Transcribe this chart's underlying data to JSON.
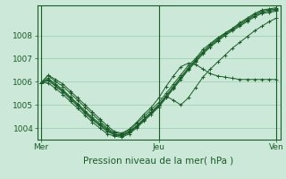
{
  "xlabel": "Pression niveau de la mer( hPa )",
  "background_color": "#cce8d8",
  "plot_bg_color": "#cce8d8",
  "line_color": "#1a5c28",
  "grid_color": "#99ccaa",
  "tick_color": "#1a5c28",
  "ylim": [
    1003.5,
    1009.3
  ],
  "yticks": [
    1004,
    1005,
    1006,
    1007,
    1008
  ],
  "xtick_positions": [
    0,
    16,
    32
  ],
  "xtick_labels": [
    "Mer",
    "Jeu",
    "Ven"
  ],
  "series": [
    [
      1005.95,
      1006.28,
      1006.0,
      1005.8,
      1005.5,
      1005.2,
      1004.9,
      1004.6,
      1004.3,
      1004.0,
      1003.8,
      1003.75,
      1003.9,
      1004.2,
      1004.5,
      1004.8,
      1005.1,
      1005.5,
      1005.9,
      1006.3,
      1006.7,
      1007.0,
      1007.4,
      1007.65,
      1007.9,
      1008.1,
      1008.3,
      1008.55,
      1008.75,
      1008.95,
      1009.1,
      1009.15,
      1009.2
    ],
    [
      1005.95,
      1006.15,
      1005.9,
      1005.65,
      1005.35,
      1005.05,
      1004.75,
      1004.45,
      1004.2,
      1003.95,
      1003.75,
      1003.7,
      1003.85,
      1004.1,
      1004.4,
      1004.7,
      1005.0,
      1005.4,
      1005.8,
      1006.2,
      1006.6,
      1006.95,
      1007.3,
      1007.6,
      1007.85,
      1008.1,
      1008.3,
      1008.5,
      1008.7,
      1008.9,
      1009.05,
      1009.1,
      1009.15
    ],
    [
      1005.95,
      1006.05,
      1005.8,
      1005.55,
      1005.25,
      1004.95,
      1004.65,
      1004.35,
      1004.1,
      1003.85,
      1003.7,
      1003.65,
      1003.8,
      1004.05,
      1004.35,
      1004.65,
      1004.95,
      1005.35,
      1005.75,
      1006.15,
      1006.55,
      1006.9,
      1007.25,
      1007.55,
      1007.8,
      1008.05,
      1008.25,
      1008.45,
      1008.65,
      1008.85,
      1009.0,
      1009.05,
      1009.1
    ],
    [
      1005.95,
      1005.95,
      1005.7,
      1005.45,
      1005.15,
      1004.85,
      1004.55,
      1004.25,
      1004.0,
      1003.75,
      1003.65,
      1003.6,
      1003.75,
      1004.0,
      1004.3,
      1004.6,
      1004.9,
      1005.3,
      1005.7,
      1006.1,
      1006.5,
      1006.85,
      1007.2,
      1007.5,
      1007.75,
      1008.0,
      1008.2,
      1008.4,
      1008.6,
      1008.8,
      1008.95,
      1009.0,
      1009.05
    ],
    [
      1005.95,
      1006.28,
      1006.1,
      1005.9,
      1005.6,
      1005.3,
      1005.0,
      1004.7,
      1004.4,
      1004.1,
      1003.85,
      1003.78,
      1003.95,
      1004.25,
      1004.6,
      1004.9,
      1005.3,
      1005.8,
      1006.25,
      1006.65,
      1006.8,
      1006.75,
      1006.55,
      1006.35,
      1006.25,
      1006.2,
      1006.15,
      1006.1,
      1006.1,
      1006.1,
      1006.1,
      1006.1,
      1006.1
    ],
    [
      1005.95,
      1006.1,
      1005.85,
      1005.6,
      1005.3,
      1005.0,
      1004.7,
      1004.4,
      1004.15,
      1003.9,
      1003.72,
      1003.68,
      1003.82,
      1004.08,
      1004.38,
      1004.68,
      1004.98,
      1005.38,
      1005.2,
      1005.0,
      1005.3,
      1005.75,
      1006.2,
      1006.55,
      1006.85,
      1007.15,
      1007.45,
      1007.7,
      1007.95,
      1008.2,
      1008.4,
      1008.6,
      1008.75
    ]
  ]
}
